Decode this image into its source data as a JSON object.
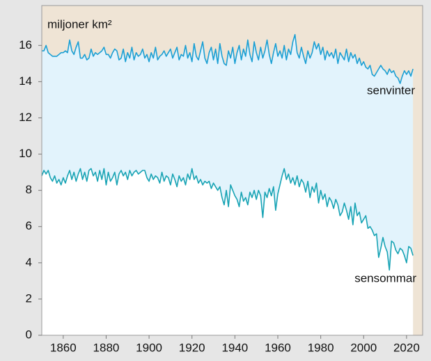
{
  "chart_data": {
    "type": "line",
    "y_label": "miljoner km²",
    "annotations": [
      "senvinter",
      "sensommar"
    ],
    "x": [
      1850,
      1851,
      1852,
      1853,
      1854,
      1855,
      1856,
      1857,
      1858,
      1859,
      1860,
      1861,
      1862,
      1863,
      1864,
      1865,
      1866,
      1867,
      1868,
      1869,
      1870,
      1871,
      1872,
      1873,
      1874,
      1875,
      1876,
      1877,
      1878,
      1879,
      1880,
      1881,
      1882,
      1883,
      1884,
      1885,
      1886,
      1887,
      1888,
      1889,
      1890,
      1891,
      1892,
      1893,
      1894,
      1895,
      1896,
      1897,
      1898,
      1899,
      1900,
      1901,
      1902,
      1903,
      1904,
      1905,
      1906,
      1907,
      1908,
      1909,
      1910,
      1911,
      1912,
      1913,
      1914,
      1915,
      1916,
      1917,
      1918,
      1919,
      1920,
      1921,
      1922,
      1923,
      1924,
      1925,
      1926,
      1927,
      1928,
      1929,
      1930,
      1931,
      1932,
      1933,
      1934,
      1935,
      1936,
      1937,
      1938,
      1939,
      1940,
      1941,
      1942,
      1943,
      1944,
      1945,
      1946,
      1947,
      1948,
      1949,
      1950,
      1951,
      1952,
      1953,
      1954,
      1955,
      1956,
      1957,
      1958,
      1959,
      1960,
      1961,
      1962,
      1963,
      1964,
      1965,
      1966,
      1967,
      1968,
      1969,
      1970,
      1971,
      1972,
      1973,
      1974,
      1975,
      1976,
      1977,
      1978,
      1979,
      1980,
      1981,
      1982,
      1983,
      1984,
      1985,
      1986,
      1987,
      1988,
      1989,
      1990,
      1991,
      1992,
      1993,
      1994,
      1995,
      1996,
      1997,
      1998,
      1999,
      2000,
      2001,
      2002,
      2003,
      2004,
      2005,
      2006,
      2007,
      2008,
      2009,
      2010,
      2011,
      2012,
      2013,
      2014,
      2015,
      2016,
      2017,
      2018,
      2019,
      2020,
      2021,
      2022,
      2023
    ],
    "series": [
      {
        "color": "#1a9fd4",
        "fill": "#e2f3fc",
        "values": [
          15.7,
          15.7,
          16.0,
          15.6,
          15.5,
          15.4,
          15.4,
          15.4,
          15.5,
          15.6,
          15.6,
          15.7,
          15.6,
          16.3,
          15.7,
          15.5,
          15.9,
          16.2,
          15.3,
          15.3,
          15.5,
          15.2,
          15.3,
          15.8,
          15.4,
          15.6,
          15.5,
          15.6,
          15.7,
          15.9,
          15.5,
          15.5,
          15.3,
          15.6,
          15.8,
          15.7,
          15.2,
          15.3,
          15.8,
          15.1,
          15.6,
          15.3,
          15.9,
          15.2,
          15.6,
          15.4,
          15.5,
          15.8,
          15.3,
          15.5,
          15.1,
          15.6,
          15.3,
          15.9,
          15.2,
          15.4,
          15.5,
          15.7,
          15.4,
          15.6,
          15.8,
          15.3,
          15.6,
          15.9,
          15.2,
          15.5,
          15.4,
          16.0,
          15.3,
          15.6,
          15.1,
          16.1,
          15.4,
          15.2,
          15.7,
          16.2,
          15.3,
          15.0,
          15.6,
          15.9,
          15.2,
          15.8,
          15.0,
          16.1,
          15.4,
          15.0,
          14.9,
          15.7,
          15.3,
          15.9,
          15.0,
          15.6,
          16.0,
          15.2,
          15.8,
          15.4,
          16.3,
          15.5,
          15.1,
          16.2,
          15.6,
          15.2,
          15.9,
          15.3,
          15.7,
          16.3,
          15.5,
          15.0,
          15.6,
          16.1,
          15.4,
          15.7,
          15.3,
          16.0,
          15.2,
          15.8,
          15.5,
          16.2,
          16.6,
          15.6,
          15.3,
          15.9,
          15.4,
          15.0,
          15.7,
          15.3,
          15.6,
          16.2,
          15.8,
          16.1,
          15.5,
          15.9,
          15.2,
          15.7,
          15.4,
          15.6,
          15.3,
          15.8,
          15.0,
          15.6,
          15.4,
          15.2,
          15.8,
          15.1,
          15.6,
          15.3,
          15.5,
          15.0,
          15.3,
          14.9,
          15.1,
          14.8,
          14.7,
          14.9,
          14.4,
          14.3,
          14.5,
          14.7,
          14.9,
          14.7,
          14.6,
          14.4,
          14.7,
          14.5,
          14.6,
          14.3,
          14.2,
          13.9,
          14.3,
          14.6,
          14.4,
          14.6,
          14.3,
          14.7
        ]
      },
      {
        "color": "#17a3b4",
        "fill": "#ffffff",
        "values": [
          8.8,
          9.1,
          8.9,
          9.1,
          8.7,
          8.5,
          8.8,
          8.4,
          8.6,
          8.3,
          8.7,
          8.4,
          8.8,
          9.1,
          8.6,
          9.0,
          8.5,
          8.9,
          9.2,
          8.6,
          9.0,
          8.5,
          9.1,
          9.2,
          8.8,
          9.0,
          8.5,
          9.1,
          8.6,
          9.2,
          8.3,
          9.0,
          8.5,
          8.7,
          9.0,
          8.3,
          8.9,
          9.1,
          8.8,
          9.0,
          8.6,
          9.1,
          8.8,
          9.0,
          9.1,
          8.9,
          9.0,
          9.1,
          9.1,
          8.7,
          8.5,
          8.9,
          8.6,
          8.8,
          8.7,
          8.4,
          9.0,
          8.5,
          8.8,
          8.7,
          8.3,
          8.9,
          8.6,
          8.2,
          8.8,
          8.5,
          8.7,
          8.3,
          8.9,
          8.6,
          9.2,
          8.6,
          8.8,
          8.4,
          8.6,
          8.3,
          8.5,
          8.4,
          8.5,
          8.1,
          8.4,
          8.2,
          8.0,
          8.2,
          7.6,
          7.2,
          8.0,
          7.1,
          8.3,
          8.0,
          7.7,
          7.5,
          7.1,
          7.9,
          7.4,
          7.6,
          7.2,
          7.9,
          7.6,
          8.0,
          7.5,
          8.0,
          7.7,
          6.5,
          7.9,
          7.6,
          8.1,
          7.7,
          8.2,
          6.9,
          7.8,
          8.3,
          8.8,
          9.2,
          8.6,
          8.9,
          8.4,
          8.7,
          8.3,
          8.8,
          8.2,
          8.6,
          8.4,
          7.9,
          8.5,
          7.6,
          8.2,
          7.9,
          8.4,
          7.3,
          8.0,
          7.5,
          7.8,
          7.1,
          7.6,
          7.4,
          7.0,
          7.5,
          7.2,
          6.6,
          6.8,
          7.3,
          6.9,
          6.4,
          7.1,
          6.1,
          7.3,
          6.6,
          6.8,
          6.2,
          6.4,
          6.6,
          5.9,
          6.0,
          5.8,
          5.5,
          5.6,
          4.3,
          4.8,
          5.4,
          4.9,
          4.6,
          3.6,
          5.2,
          5.1,
          4.7,
          4.5,
          4.8,
          4.7,
          4.4,
          4.0,
          4.9,
          4.8,
          4.4
        ]
      }
    ],
    "background_fill": "#efe4d5",
    "xlim": [
      1850,
      2027.5
    ],
    "xticks": [
      1860,
      1880,
      1900,
      1920,
      1940,
      1960,
      1980,
      2000,
      2020
    ],
    "ylim": [
      0,
      18.2
    ],
    "yticks": [
      0,
      2,
      4,
      6,
      8,
      10,
      12,
      14,
      16
    ]
  }
}
